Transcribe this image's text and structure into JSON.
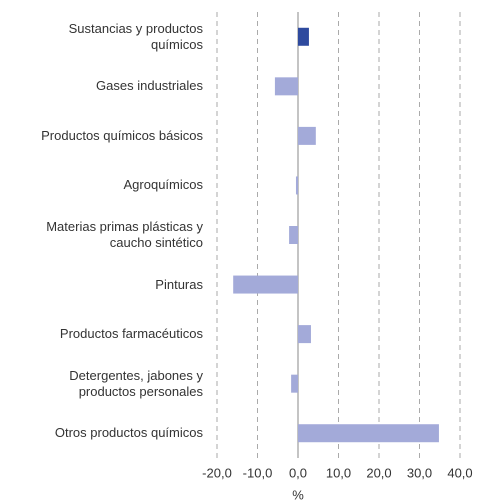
{
  "chart_data": {
    "type": "hbar",
    "categories": [
      "Sustancias y productos\nquímicos",
      "Gases industriales",
      "Productos químicos básicos",
      "Agroquímicos",
      "Materias primas plásticas y\ncaucho sintético",
      "Pinturas",
      "Productos farmacéuticos",
      "Detergentes, jabones y\nproductos personales",
      "Otros productos químicos"
    ],
    "values": [
      2.7,
      -5.7,
      4.4,
      -0.5,
      -2.2,
      -16.0,
      3.2,
      -1.7,
      34.8
    ],
    "colors": [
      "#2e4a9e",
      "#a3aad9",
      "#a3aad9",
      "#a3aad9",
      "#a3aad9",
      "#a3aad9",
      "#a3aad9",
      "#a3aad9",
      "#a3aad9"
    ],
    "xlim": [
      -20,
      40
    ],
    "xticks": [
      {
        "value": -20,
        "label": "-20,0"
      },
      {
        "value": -10,
        "label": "-10,0"
      },
      {
        "value": 0,
        "label": "0,0"
      },
      {
        "value": 10,
        "label": "10,0"
      },
      {
        "value": 20,
        "label": "20,0"
      },
      {
        "value": 30,
        "label": "30,0"
      },
      {
        "value": 40,
        "label": "40,0"
      }
    ],
    "xlabel": "%",
    "grid": true
  }
}
